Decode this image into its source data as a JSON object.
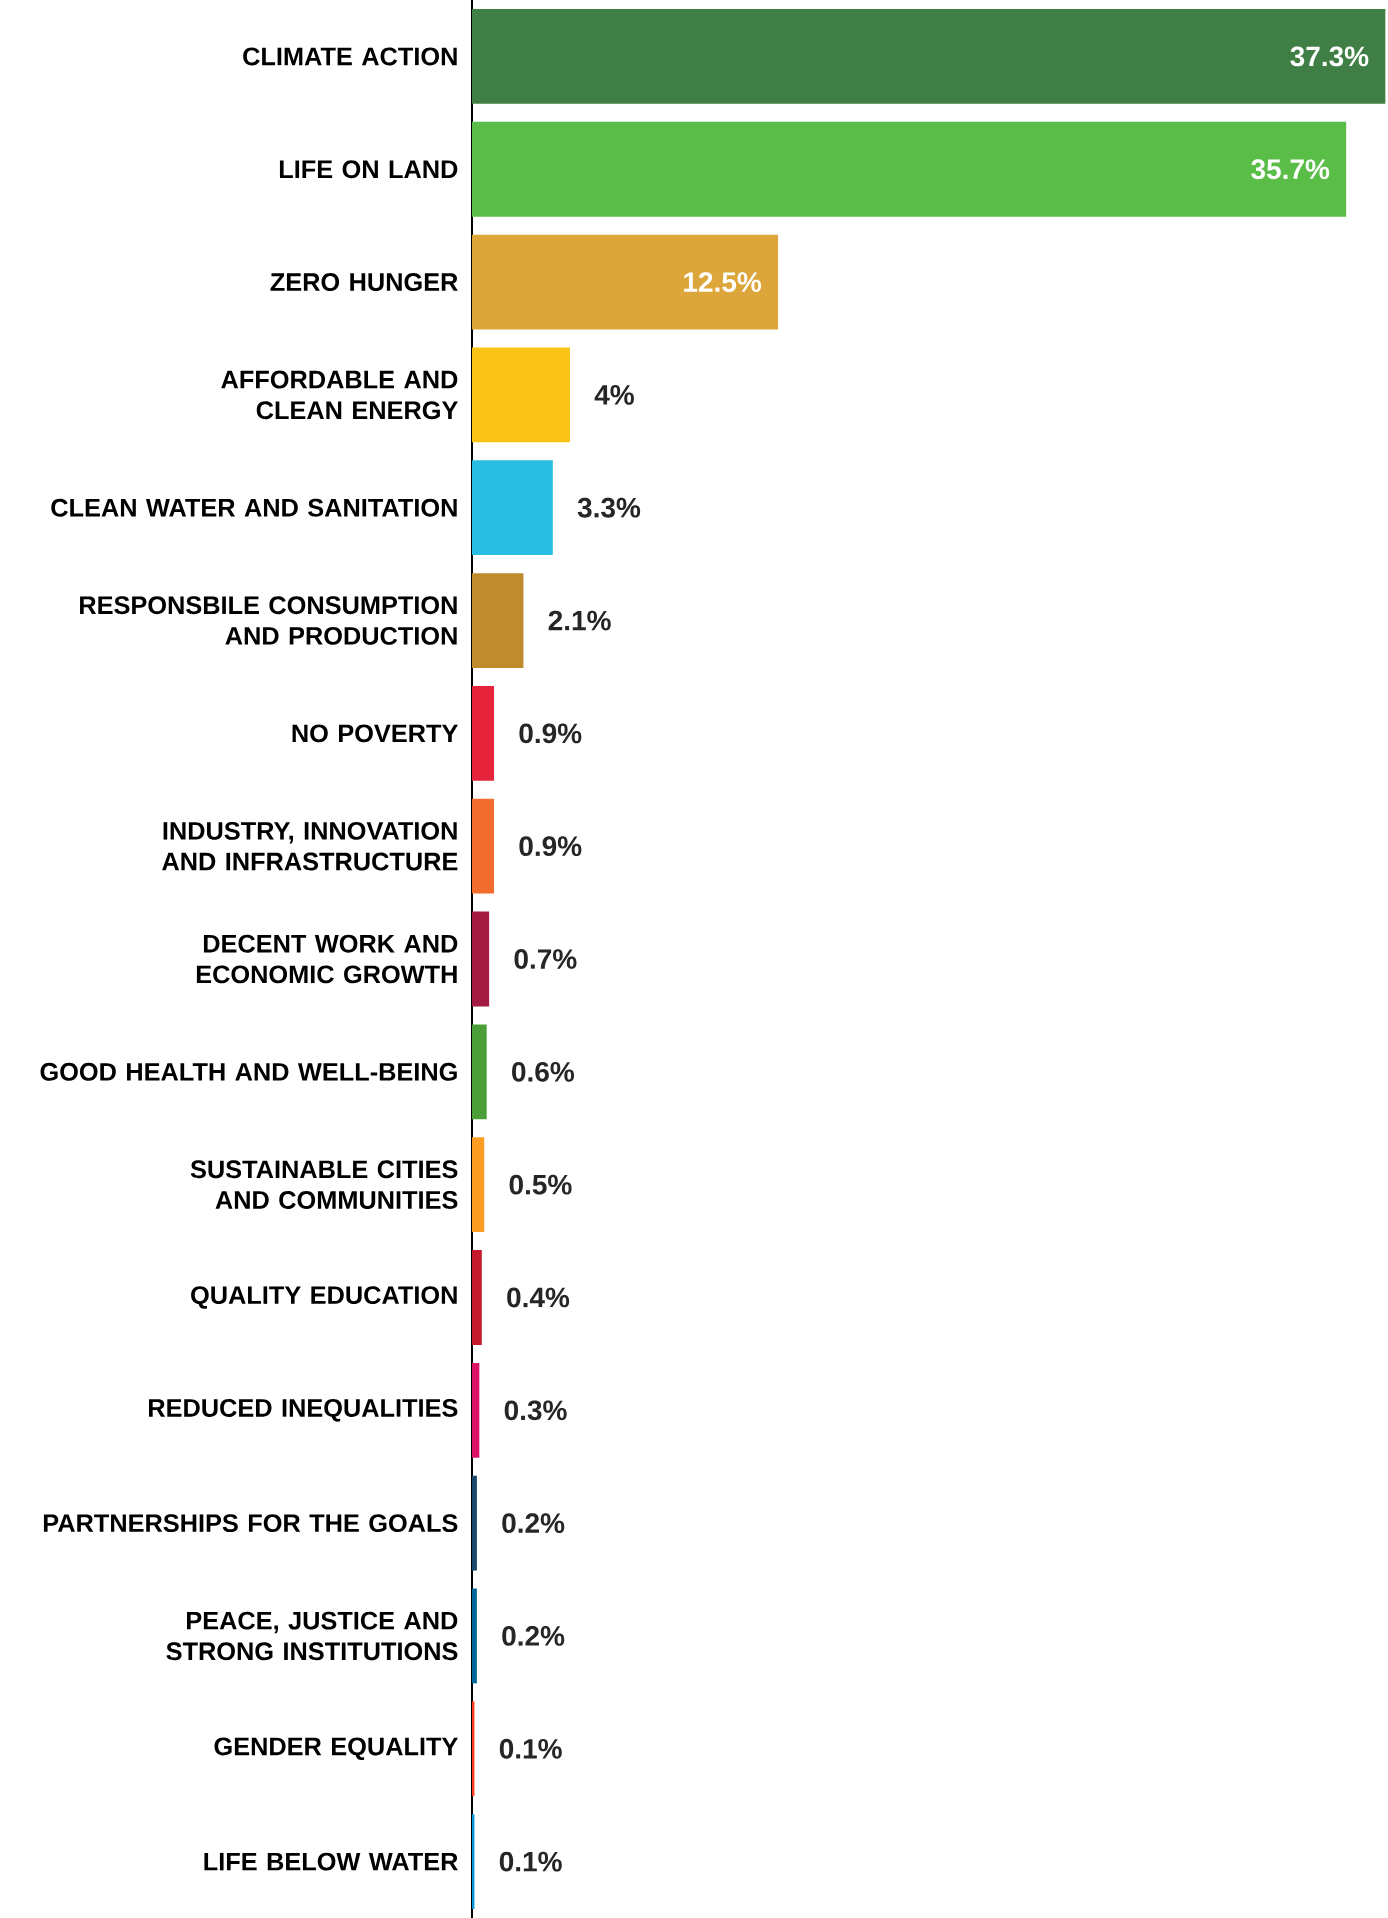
{
  "chart_data": {
    "type": "bar",
    "orientation": "horizontal",
    "categories": [
      "CLIMATE ACTION",
      "LIFE ON LAND",
      "ZERO HUNGER",
      "AFFORDABLE AND CLEAN ENERGY",
      "CLEAN WATER AND SANITATION",
      "RESPONSBILE CONSUMPTION AND PRODUCTION",
      "NO POVERTY",
      "INDUSTRY, INNOVATION AND INFRASTRUCTURE",
      "DECENT WORK AND ECONOMIC GROWTH",
      "GOOD HEALTH AND WELL-BEING",
      "SUSTAINABLE CITIES AND COMMUNITIES",
      "QUALITY EDUCATION",
      "REDUCED INEQUALITIES",
      "PARTNERSHIPS FOR THE GOALS",
      "PEACE, JUSTICE AND STRONG INSTITUTIONS",
      "GENDER EQUALITY",
      "LIFE BELOW WATER"
    ],
    "values": [
      37.3,
      35.7,
      12.5,
      4,
      3.3,
      2.1,
      0.9,
      0.9,
      0.7,
      0.6,
      0.5,
      0.4,
      0.3,
      0.2,
      0.2,
      0.1,
      0.1
    ],
    "value_labels": [
      "37.3%",
      "35.7%",
      "12.5%",
      "4%",
      "3.3%",
      "2.1%",
      "0.9%",
      "0.9%",
      "0.7%",
      "0.6%",
      "0.5%",
      "0.4%",
      "0.3%",
      "0.2%",
      "0.2%",
      "0.1%",
      "0.1%"
    ],
    "colors": [
      "#3f7e44",
      "#5abd47",
      "#dda63a",
      "#f9c316",
      "#28bde3",
      "#bf8b2e",
      "#e5243b",
      "#f36d2f",
      "#a21942",
      "#4c9f38",
      "#fd9d24",
      "#c5192d",
      "#dd1367",
      "#19486a",
      "#00689d",
      "#ff3a21",
      "#0a97d9"
    ]
  }
}
